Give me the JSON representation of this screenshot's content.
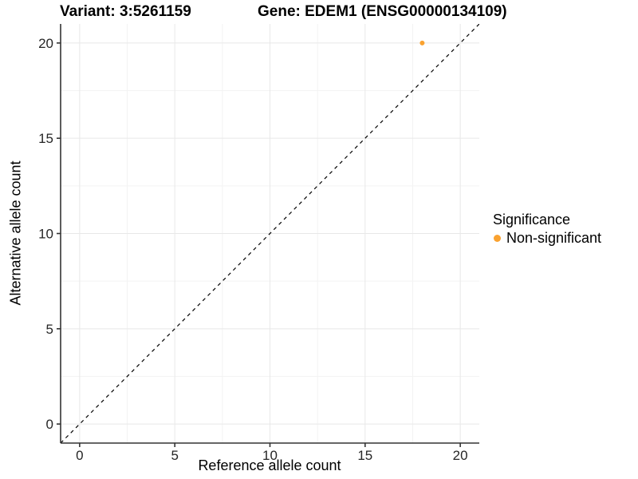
{
  "figure": {
    "title_left": "Variant: 3:5261159",
    "title_right": "Gene: EDEM1 (ENSG00000134109)"
  },
  "chart_data": {
    "type": "scatter",
    "title": "Variant: 3:5261159   Gene: EDEM1 (ENSG00000134109)",
    "xlabel": "Reference allele count",
    "ylabel": "Alternative allele count",
    "xlim": [
      -1,
      21
    ],
    "ylim": [
      -1,
      21
    ],
    "x_ticks": [
      0,
      5,
      10,
      15,
      20
    ],
    "y_ticks": [
      0,
      5,
      10,
      15,
      20
    ],
    "x_minor_ticks": [
      2.5,
      7.5,
      12.5,
      17.5
    ],
    "y_minor_ticks": [
      2.5,
      7.5,
      12.5,
      17.5
    ],
    "grid": true,
    "series": [
      {
        "name": "Non-significant",
        "color": "#FAA230",
        "points": [
          {
            "x": 18,
            "y": 20
          }
        ]
      }
    ],
    "reference_line": {
      "type": "abline",
      "slope": 1,
      "intercept": 0,
      "linestyle": "dashed",
      "color": "#000000"
    },
    "legend": {
      "title": "Significance",
      "position": "right",
      "items": [
        {
          "label": "Non-significant",
          "color": "#FAA230"
        }
      ]
    },
    "theme": {
      "grid_major_color": "#E8E8E8",
      "grid_minor_color": "#F3F3F3",
      "axis_line_color": "#333333"
    }
  }
}
